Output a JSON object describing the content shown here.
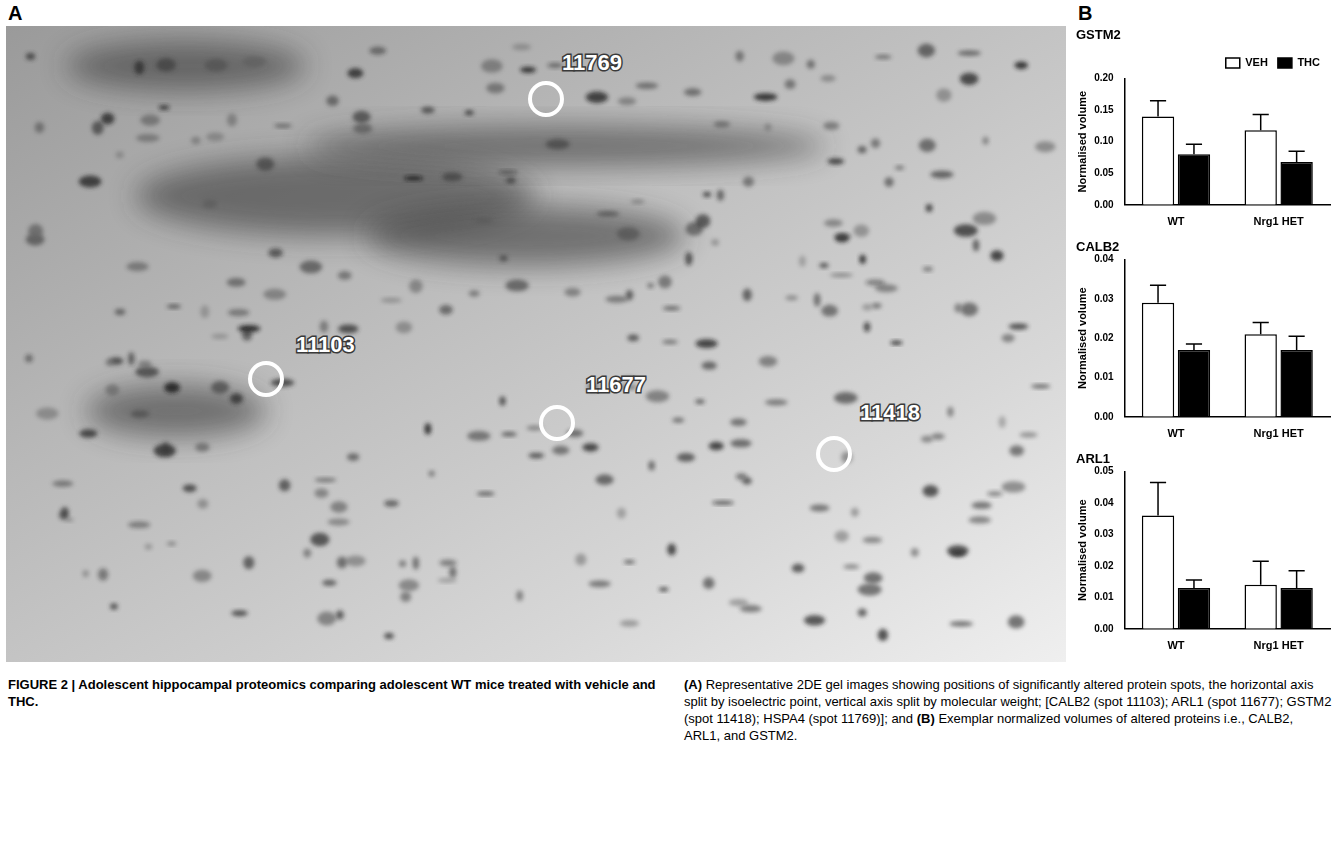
{
  "panels": {
    "A": {
      "letter": "A",
      "spots": [
        "11769",
        "11103",
        "11677",
        "11418"
      ]
    },
    "B": {
      "letter": "B"
    }
  },
  "chart_data": [
    {
      "type": "bar",
      "title": "GSTM2",
      "y_label": "Normalised volume",
      "categories": [
        "WT",
        "Nrg1 HET"
      ],
      "series": [
        {
          "name": "VEH",
          "color": "#ffffff",
          "values": [
            0.14,
            0.118
          ],
          "errors": [
            0.025,
            0.025
          ]
        },
        {
          "name": "THC",
          "color": "#000000",
          "values": [
            0.08,
            0.068
          ],
          "errors": [
            0.016,
            0.017
          ]
        }
      ],
      "ylim": [
        0,
        0.2
      ],
      "yticks": [
        {
          "value": 0,
          "label": "0.00"
        },
        {
          "value": 0.05,
          "label": "0.05"
        },
        {
          "value": 0.1,
          "label": "0.10"
        },
        {
          "value": 0.15,
          "label": "0.15"
        },
        {
          "value": 0.2,
          "label": "0.20"
        }
      ],
      "grid": false,
      "legend": "top right"
    },
    {
      "type": "bar",
      "title": "CALB2",
      "y_label": "Normalised volume",
      "categories": [
        "WT",
        "Nrg1 HET"
      ],
      "series": [
        {
          "color": "#ffffff",
          "values": [
            0.029,
            0.021
          ],
          "errors": [
            0.0045,
            0.003
          ]
        },
        {
          "color": "#000000",
          "values": [
            0.017,
            0.017
          ],
          "errors": [
            0.0015,
            0.0035
          ]
        }
      ],
      "ylim": [
        0,
        0.04
      ],
      "yticks": [
        {
          "value": 0,
          "label": "0.00"
        },
        {
          "value": 0.01,
          "label": "0.01"
        },
        {
          "value": 0.02,
          "label": "0.02"
        },
        {
          "value": 0.03,
          "label": "0.03"
        },
        {
          "value": 0.04,
          "label": "0.04"
        }
      ],
      "grid": false
    },
    {
      "type": "bar",
      "title": "ARL1",
      "y_label": "Normalised volume",
      "categories": [
        "WT",
        "Nrg1 HET"
      ],
      "series": [
        {
          "color": "#ffffff",
          "values": [
            0.036,
            0.014
          ],
          "errors": [
            0.0105,
            0.0075
          ]
        },
        {
          "color": "#000000",
          "values": [
            0.013,
            0.013
          ],
          "errors": [
            0.0025,
            0.0055
          ]
        }
      ],
      "ylim": [
        0,
        0.05
      ],
      "yticks": [
        {
          "value": 0,
          "label": "0.00"
        },
        {
          "value": 0.01,
          "label": "0.01"
        },
        {
          "value": 0.02,
          "label": "0.02"
        },
        {
          "value": 0.03,
          "label": "0.03"
        },
        {
          "value": 0.04,
          "label": "0.04"
        },
        {
          "value": 0.05,
          "label": "0.05"
        }
      ],
      "grid": false
    }
  ],
  "caption": {
    "label": "FIGURE 2 |",
    "title": "Adolescent hippocampal proteomics comparing adolescent WT mice treated with vehicle and THC.",
    "parts": [
      {
        "label": "(A)",
        "text": "Representative 2DE gel images showing positions of significantly altered protein spots, the horizontal axis split by isoelectric point, vertical axis split by molecular weight; [CALB2 (spot 11103); ARL1 (spot 11677); GSTM2 (spot 11418); HSPA4 (spot 11769)]; and"
      },
      {
        "label": "(B)",
        "text": "Exemplar normalized volumes of altered proteins i.e., CALB2, ARL1, and GSTM2."
      }
    ]
  }
}
